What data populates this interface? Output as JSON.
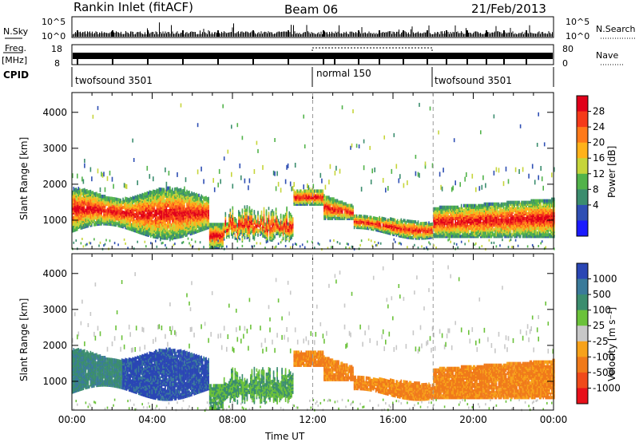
{
  "header": {
    "title": "Rankin Inlet (fitACF)",
    "beam": "Beam 06",
    "date": "21/Feb/2013"
  },
  "top_panels": {
    "nsky_label": "N.Sky",
    "nsearch_label": "N.Search",
    "sky_ticks": [
      "10^5",
      "10^0"
    ],
    "freq_label_1": "Freq.",
    "freq_label_2": "[MHz]",
    "freq_ticks": [
      "18",
      "8"
    ],
    "nave_label": "Nave",
    "nave_ticks": [
      "80",
      "0"
    ],
    "cpid_label": "CPID",
    "cpid_segments": [
      {
        "start": 0,
        "name": "twofsound 3501"
      },
      {
        "start": 12,
        "name": "normal 150"
      },
      {
        "start": 18,
        "name": "twofsound 3501"
      }
    ]
  },
  "chart_data": [
    {
      "type": "heatmap",
      "name": "power",
      "xlabel": "",
      "ylabel": "Slant Range [km]",
      "xlim": [
        0,
        24
      ],
      "ylim": [
        200,
        4550
      ],
      "yticks": [
        1000,
        2000,
        3000,
        4000
      ],
      "colorbar": {
        "label": "Power [dB]",
        "ticks": [
          "4",
          "8",
          "12",
          "16",
          "20",
          "24",
          "28"
        ],
        "colors": [
          "#1a1aff",
          "#2f4fb4",
          "#3b8d6e",
          "#52b34a",
          "#c6d53a",
          "#ffb21a",
          "#ff7a1a",
          "#f53a1a",
          "#e0001a"
        ]
      }
    },
    {
      "type": "heatmap",
      "name": "velocity",
      "xlabel": "Time UT",
      "ylabel": "Slant Range [km]",
      "xlim": [
        0,
        24
      ],
      "ylim": [
        200,
        4550
      ],
      "yticks": [
        1000,
        2000,
        3000,
        4000
      ],
      "xticks": [
        "00:00",
        "04:00",
        "08:00",
        "12:00",
        "16:00",
        "20:00",
        "00:00"
      ],
      "colorbar": {
        "label": "Velocity [m s⁻¹]",
        "ticks": [
          "1000",
          "500",
          "100",
          "25",
          "-25",
          "-100",
          "-500",
          "-1000"
        ],
        "colors": [
          "#2a46b4",
          "#3a7a9a",
          "#3b8d6e",
          "#6bc23a",
          "#c8c8c8",
          "#f7a21a",
          "#f07a1a",
          "#f04a1a",
          "#e8101a"
        ]
      }
    }
  ]
}
